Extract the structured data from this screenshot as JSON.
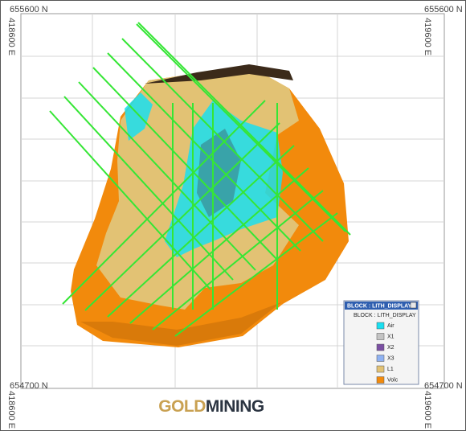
{
  "coordinates": {
    "top_left": "655600 N",
    "top_right": "655600 N",
    "left_top": "418600 E",
    "right_top": "419600 E",
    "bottom_left": "654700 N",
    "bottom_right": "654700 N",
    "left_bottom": "418600 E",
    "right_bottom": "419600 E"
  },
  "legend": {
    "title": "BLOCK : LITH_DISPLAY",
    "subtitle": "BLOCK : LITH_DISPLAY",
    "items": [
      {
        "name": "Air",
        "color": "#19dff0"
      },
      {
        "name": "X1",
        "color": "#c4c4c4"
      },
      {
        "name": "X2",
        "color": "#7b4fa3"
      },
      {
        "name": "X3",
        "color": "#8fb2f2"
      },
      {
        "name": "L1",
        "color": "#e2c274"
      },
      {
        "name": "Volc",
        "color": "#f28a0c"
      }
    ]
  },
  "logo": {
    "gold": "GOLD",
    "mining": "MINING"
  }
}
